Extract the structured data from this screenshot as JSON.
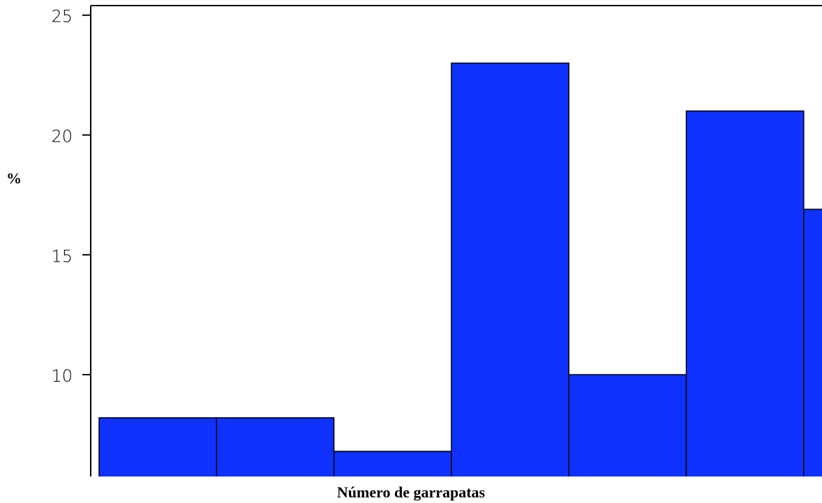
{
  "chart_data": {
    "type": "bar",
    "x_label": "Número de garrapatas",
    "y_label": "%",
    "categories": [
      null,
      null,
      null,
      null,
      null,
      null,
      null
    ],
    "values": [
      8.2,
      8.2,
      6.8,
      23.0,
      10.0,
      21.0,
      16.9
    ],
    "color": "#0f32ff",
    "ylim": [
      5.75,
      25.4
    ],
    "yticks": [
      10,
      15,
      20,
      25
    ]
  }
}
